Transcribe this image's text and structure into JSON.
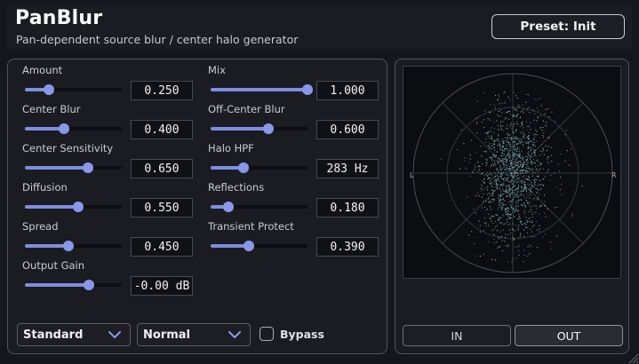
{
  "header": {
    "title": "PanBlur",
    "subtitle": "Pan-dependent source blur / center halo generator",
    "preset_label": "Preset: Init"
  },
  "params_left": [
    {
      "label": "Amount",
      "value": "0.250",
      "level": 0.25
    },
    {
      "label": "Center Blur",
      "value": "0.400",
      "level": 0.4
    },
    {
      "label": "Center Sensitivity",
      "value": "0.650",
      "level": 0.65
    },
    {
      "label": "Diffusion",
      "value": "0.550",
      "level": 0.55
    },
    {
      "label": "Spread",
      "value": "0.450",
      "level": 0.45
    },
    {
      "label": "Output Gain",
      "value": "-0.00 dB",
      "level": 0.66
    }
  ],
  "params_right": [
    {
      "label": "Mix",
      "value": "1.000",
      "level": 1.0
    },
    {
      "label": "Off-Center Blur",
      "value": "0.600",
      "level": 0.6
    },
    {
      "label": "Halo HPF",
      "value": "283 Hz",
      "level": 0.34
    },
    {
      "label": "Reflections",
      "value": "0.180",
      "level": 0.18
    },
    {
      "label": "Transient Protect",
      "value": "0.390",
      "level": 0.39
    }
  ],
  "controls": {
    "mode_select": "Standard",
    "quality_select": "Normal",
    "bypass_label": "Bypass",
    "bypass_checked": false
  },
  "scope": {
    "left_label": "L",
    "right_label": "R",
    "in_label": "IN",
    "out_label": "OUT",
    "active": "OUT",
    "dot_color": "#8fc7cf"
  }
}
